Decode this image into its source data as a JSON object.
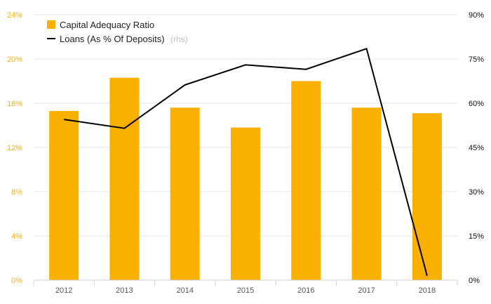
{
  "chart_data": {
    "type": "bar+line",
    "categories": [
      "2012",
      "2013",
      "2014",
      "2015",
      "2016",
      "2017",
      "2018"
    ],
    "series": [
      {
        "name": "Capital Adequacy Ratio",
        "kind": "bar",
        "axis": "left",
        "color": "#f9b000",
        "values": [
          15.3,
          18.3,
          15.6,
          13.8,
          18.0,
          15.6,
          15.1
        ]
      },
      {
        "name": "Loans (As % Of Deposits)",
        "name_suffix": "(rhs)",
        "kind": "line",
        "axis": "right",
        "color": "#000000",
        "values": [
          54.5,
          51.5,
          66.2,
          73.0,
          71.5,
          78.5,
          1.5
        ]
      }
    ],
    "y_left": {
      "min": 0,
      "max": 24,
      "ticks": [
        "0%",
        "4%",
        "8%",
        "12%",
        "16%",
        "20%",
        "24%"
      ],
      "color": "#f9b000"
    },
    "y_right": {
      "min": 0,
      "max": 90,
      "ticks": [
        "0%",
        "15%",
        "30%",
        "45%",
        "60%",
        "75%",
        "90%"
      ],
      "color": "#111111"
    },
    "grid": true,
    "legend_position": "top-left"
  }
}
